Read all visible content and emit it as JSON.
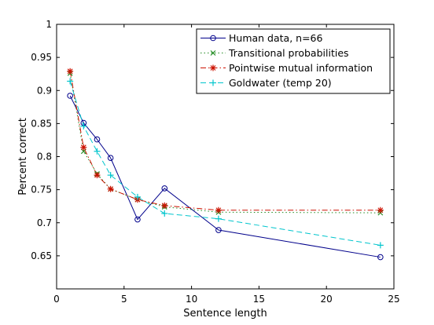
{
  "chart_data": {
    "type": "line",
    "xlabel": "Sentence length",
    "ylabel": "Percent correct",
    "xlim": [
      0,
      25
    ],
    "ylim": [
      0.6,
      1.0
    ],
    "xticks": [
      0,
      5,
      10,
      15,
      20,
      25
    ],
    "yticks": [
      0.65,
      0.7,
      0.75,
      0.8,
      0.85,
      0.9,
      0.95,
      1
    ],
    "xtick_labels": [
      "0",
      "5",
      "10",
      "15",
      "20",
      "25"
    ],
    "ytick_labels": [
      "0.65",
      "0.7",
      "0.75",
      "0.8",
      "0.85",
      "0.9",
      "0.95",
      "1"
    ],
    "grid": false,
    "legend_position": "top-right",
    "series": [
      {
        "name": "Human data, n=66",
        "color": "#00008b",
        "dash": "solid",
        "marker": "circle",
        "x": [
          1,
          2,
          3,
          4,
          6,
          8,
          12,
          24
        ],
        "y": [
          0.892,
          0.851,
          0.826,
          0.798,
          0.705,
          0.752,
          0.689,
          0.648
        ]
      },
      {
        "name": "Transitional probabilities",
        "color": "#228b22",
        "dash": "dotted",
        "marker": "x",
        "x": [
          1,
          2,
          3,
          4,
          6,
          8,
          12,
          24
        ],
        "y": [
          0.926,
          0.808,
          0.774,
          0.751,
          0.735,
          0.724,
          0.716,
          0.715
        ]
      },
      {
        "name": "Pointwise mutual information",
        "color": "#cc1100",
        "dash": "dashdot",
        "marker": "star",
        "x": [
          1,
          2,
          3,
          4,
          6,
          8,
          12,
          24
        ],
        "y": [
          0.929,
          0.814,
          0.772,
          0.751,
          0.735,
          0.726,
          0.719,
          0.719
        ]
      },
      {
        "name": "Goldwater (temp 20)",
        "color": "#00c5cd",
        "dash": "dashed",
        "marker": "plus",
        "x": [
          1,
          2,
          3,
          4,
          6,
          8,
          12,
          24
        ],
        "y": [
          0.914,
          0.846,
          0.808,
          0.772,
          0.739,
          0.714,
          0.706,
          0.666
        ]
      }
    ]
  }
}
